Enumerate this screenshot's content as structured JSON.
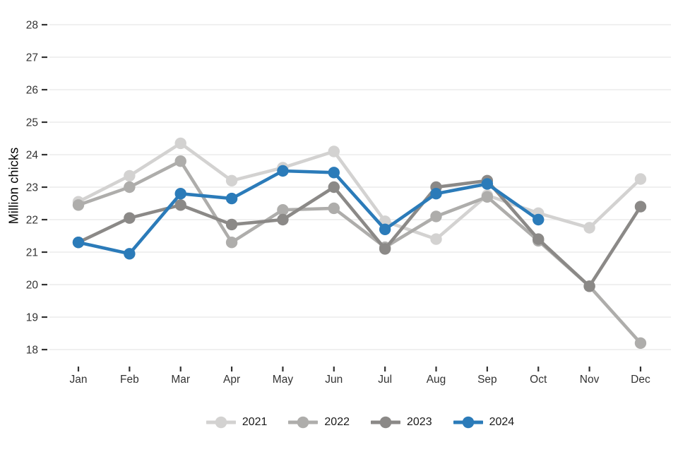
{
  "style": {
    "background": "#ffffff",
    "grid_color": "#ececec",
    "tick_color": "#333333",
    "tick_label_color": "#333333",
    "legend_text_color": "#1a1a1a",
    "axis_title_color": "#000000"
  },
  "chart_data": {
    "type": "line",
    "title": "",
    "xlabel": "",
    "ylabel": "Million chicks",
    "categories": [
      "Jan",
      "Feb",
      "Mar",
      "Apr",
      "May",
      "Jun",
      "Jul",
      "Aug",
      "Sep",
      "Oct",
      "Nov",
      "Dec"
    ],
    "y_ticks": [
      28,
      27,
      26,
      25,
      24,
      23,
      22,
      21,
      20,
      19,
      18
    ],
    "ylim": [
      17.5,
      28.4
    ],
    "grid": true,
    "legend_position": "bottom-center",
    "marker": "circle",
    "series": [
      {
        "name": "2021",
        "color": "#d3d2d1",
        "values": [
          22.55,
          23.35,
          24.35,
          23.2,
          23.6,
          24.1,
          21.95,
          21.4,
          22.75,
          22.2,
          21.75,
          23.25
        ]
      },
      {
        "name": "2022",
        "color": "#aeadab",
        "values": [
          22.45,
          23.0,
          23.8,
          21.3,
          22.3,
          22.35,
          21.15,
          22.1,
          22.7,
          21.35,
          19.95,
          18.2
        ]
      },
      {
        "name": "2023",
        "color": "#8b8987",
        "values": [
          21.3,
          22.05,
          22.45,
          21.85,
          22.0,
          23.0,
          21.1,
          23.0,
          23.2,
          21.4,
          19.95,
          22.4
        ]
      },
      {
        "name": "2024",
        "color": "#2b7bb9",
        "values": [
          21.3,
          20.95,
          22.8,
          22.65,
          23.5,
          23.45,
          21.7,
          22.8,
          23.1,
          22.0,
          null,
          null
        ]
      }
    ]
  }
}
